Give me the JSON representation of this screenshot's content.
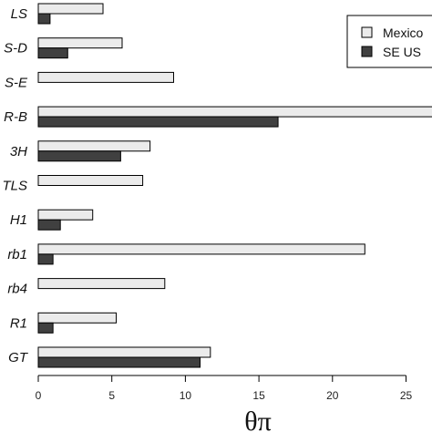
{
  "chart_data": {
    "type": "bar",
    "orientation": "horizontal",
    "categories": [
      "LS",
      "S-D",
      "S-E",
      "R-B",
      "3H",
      "TLS",
      "H1",
      "rb1",
      "rb4",
      "R1",
      "GT"
    ],
    "series": [
      {
        "name": "Mexico",
        "color": "#ebebeb",
        "values": [
          4.4,
          5.7,
          9.2,
          27.0,
          7.6,
          7.1,
          3.7,
          22.2,
          8.6,
          5.3,
          11.7
        ]
      },
      {
        "name": "SE US",
        "color": "#404040",
        "values": [
          0.8,
          2.0,
          0,
          16.3,
          5.6,
          0,
          1.5,
          1.0,
          0,
          1.0,
          11.0
        ]
      }
    ],
    "xlabel": "θπ",
    "ylabel": "",
    "title": "",
    "xlim": [
      0,
      27
    ],
    "xticks": [
      0,
      5,
      10,
      15,
      20,
      25
    ],
    "legend_position": "top-right",
    "grid": false
  }
}
